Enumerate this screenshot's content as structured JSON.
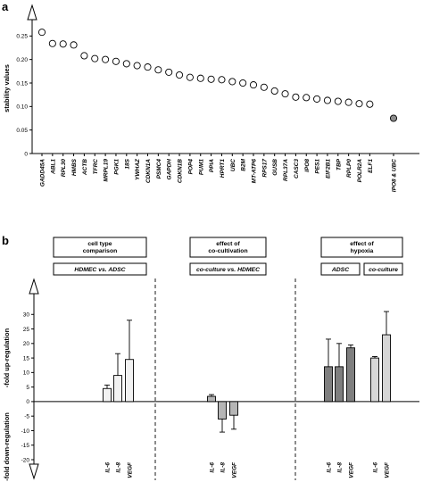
{
  "panel_a_label": "a",
  "panel_b_label": "b",
  "chart_data": [
    {
      "type": "scatter",
      "ylabel": "stability values",
      "ylim": [
        0,
        0.3
      ],
      "yticks": [
        "0",
        "0.05",
        "0.10",
        "0.15",
        "0.20",
        "0.25"
      ],
      "categories": [
        "GADD45A",
        "ABL1",
        "RPL30",
        "HMBS",
        "ACTB",
        "TFRC",
        "MRPL19",
        "PGK1",
        "18S",
        "YWHAZ",
        "CDKN1A",
        "PSMC4",
        "GAPDH",
        "CDKN1B",
        "POP4",
        "PUM1",
        "PPIA",
        "HPRT1",
        "UBC",
        "B2M",
        "MT-ATP6",
        "RPS17",
        "GUSB",
        "RPL37A",
        "CASC3",
        "IPO8",
        "PES1",
        "EIF2B1",
        "TBP",
        "RPLP0",
        "POLR2A",
        "ELF1",
        "IPO8 & UBC"
      ],
      "values": [
        0.258,
        0.234,
        0.233,
        0.231,
        0.208,
        0.202,
        0.2,
        0.196,
        0.191,
        0.187,
        0.184,
        0.178,
        0.173,
        0.167,
        0.162,
        0.16,
        0.158,
        0.157,
        0.153,
        0.15,
        0.146,
        0.141,
        0.133,
        0.127,
        0.12,
        0.119,
        0.116,
        0.113,
        0.111,
        0.109,
        0.106,
        0.105,
        0.075
      ],
      "highlight": "IPO8 & UBC",
      "marker_color": "#ffffff",
      "highlight_color": "#8c8c8c"
    },
    {
      "type": "bar",
      "ylabel_up": "-fold up-regulation",
      "ylabel_down": "-fold down-regulation",
      "ylim": [
        -20,
        35
      ],
      "yticks": [
        "-20",
        "-15",
        "-10",
        "-5",
        "0",
        "5",
        "10",
        "15",
        "20",
        "25",
        "30"
      ],
      "groups": [
        {
          "header": [
            "cell type",
            "comparison"
          ],
          "subheaders": [
            {
              "text": "HDMEC vs. ADSC",
              "italic_parts": [
                "HDMEC",
                "vs.",
                "ADSC"
              ]
            }
          ],
          "bars": [
            {
              "label": "IL-6",
              "value": 4.5,
              "err": 1.2,
              "color": "#f2f2f2"
            },
            {
              "label": "IL-8",
              "value": 9.0,
              "err": 7.5,
              "color": "#f2f2f2"
            },
            {
              "label": "VEGF",
              "value": 14.5,
              "err": 13.5,
              "color": "#f2f2f2"
            }
          ]
        },
        {
          "header": [
            "effect of",
            "co-cultivation"
          ],
          "subheaders": [
            {
              "text": "co-culture vs. HDMEC"
            }
          ],
          "bars": [
            {
              "label": "IL-6",
              "value": 1.8,
              "err": 0.6,
              "color": "#b5b5b5"
            },
            {
              "label": "IL-8",
              "value": -6.0,
              "err": 4.5,
              "color": "#b5b5b5"
            },
            {
              "label": "VEGF",
              "value": -4.7,
              "err": 4.8,
              "color": "#b5b5b5"
            }
          ]
        },
        {
          "header": [
            "effect of",
            "hypoxia"
          ],
          "subheaders": [
            {
              "text": "ADSC"
            },
            {
              "text": "co-culture"
            }
          ],
          "bars": [
            {
              "label": "IL-6",
              "value": 12.0,
              "err": 9.5,
              "color": "#7f7f7f"
            },
            {
              "label": "IL-8",
              "value": 12.0,
              "err": 8.0,
              "color": "#7f7f7f"
            },
            {
              "label": "VEGF",
              "value": 18.5,
              "err": 1.0,
              "color": "#7f7f7f"
            },
            {
              "label": "IL-6",
              "value": 15.0,
              "err": 0.5,
              "color": "#d6d6d6"
            },
            {
              "label": "VEGF",
              "value": 23.0,
              "err": 8.0,
              "color": "#d6d6d6"
            }
          ]
        }
      ]
    }
  ]
}
